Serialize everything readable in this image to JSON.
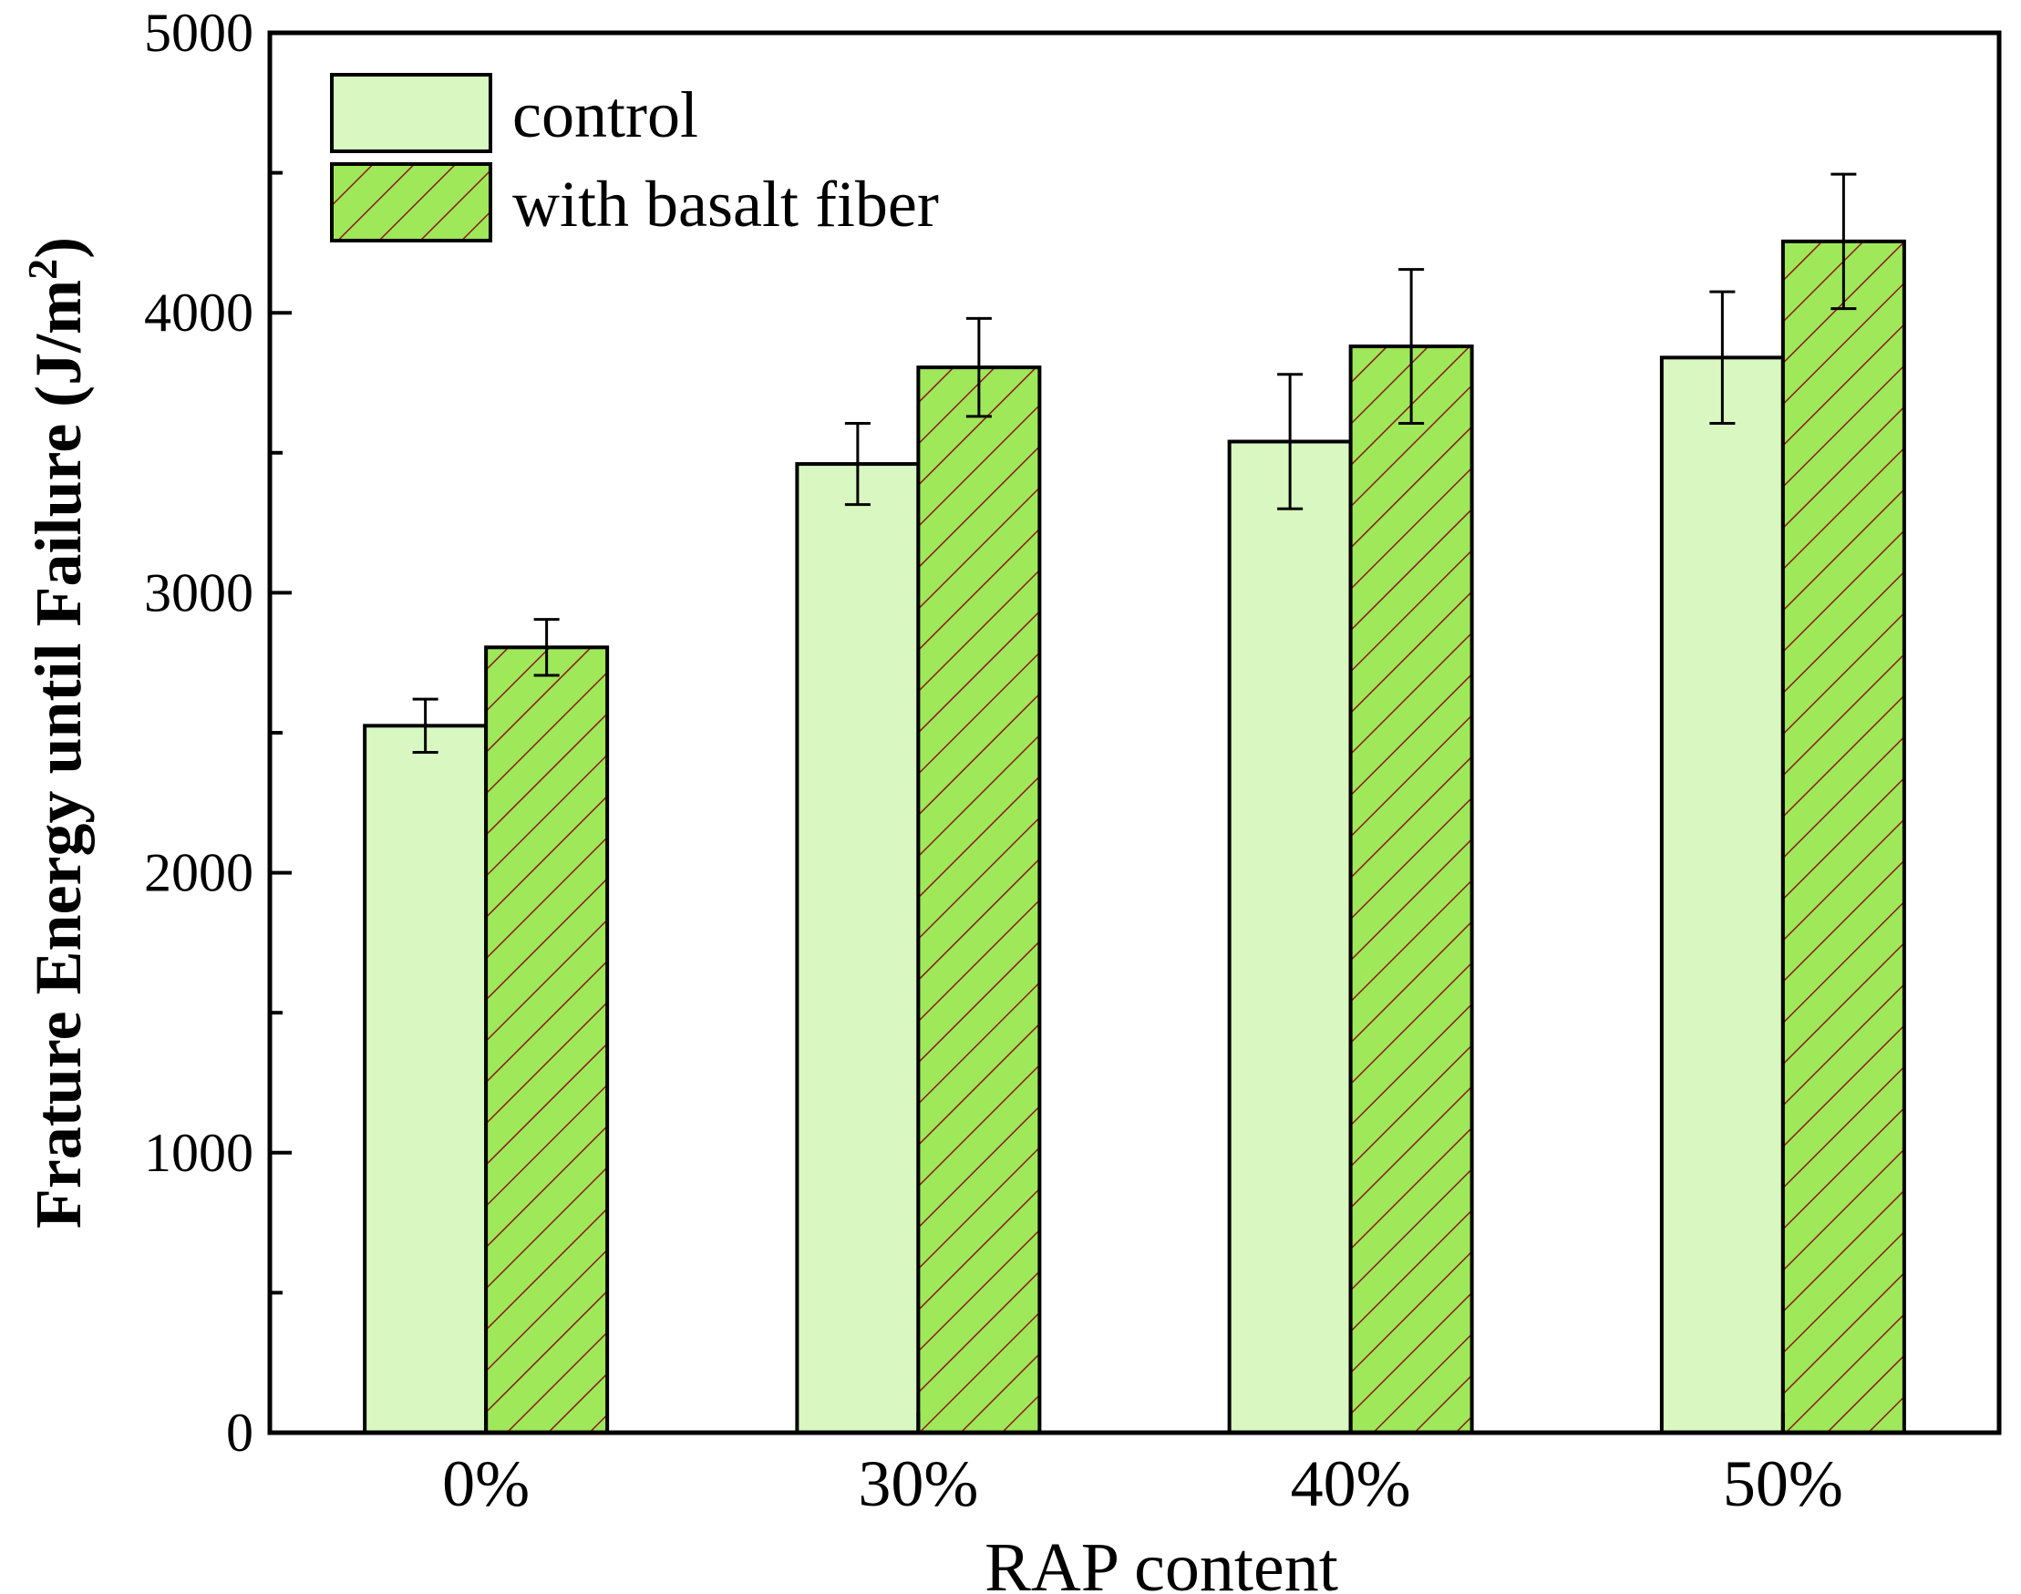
{
  "chart_data": {
    "type": "bar",
    "title": "",
    "xlabel": "RAP content",
    "ylabel": "Frature Energy until Failure (J/m",
    "ylabel_superscript": "2",
    "ylabel_close": ")",
    "categories": [
      "0%",
      "30%",
      "40%",
      "50%"
    ],
    "ylim": [
      0,
      5000
    ],
    "yticks": [
      0,
      1000,
      2000,
      3000,
      4000,
      5000
    ],
    "ytick_labels": [
      "0",
      "1000",
      "2000",
      "3000",
      "4000",
      "5000"
    ],
    "grid": false,
    "legend_position": "top-left",
    "series": [
      {
        "name": "control",
        "values": [
          2525,
          3460,
          3540,
          3840
        ],
        "errors": [
          95,
          145,
          240,
          235
        ],
        "color": "#d9f7c0",
        "pattern": "none"
      },
      {
        "name": "with basalt fiber",
        "values": [
          2805,
          3805,
          3880,
          4255
        ],
        "errors": [
          100,
          175,
          275,
          240
        ],
        "color": "#9ee85a",
        "pattern": "diagonal-hatch",
        "hatch_color": "#8b1a1a"
      }
    ]
  }
}
